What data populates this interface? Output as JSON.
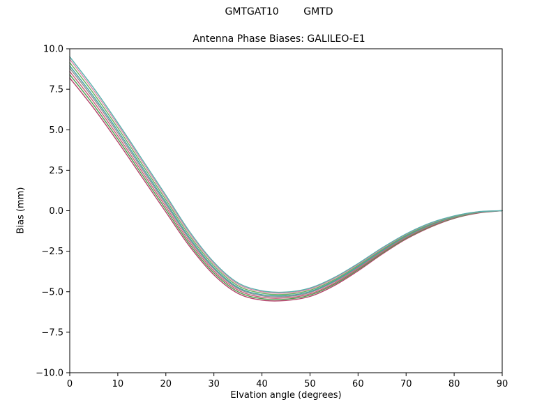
{
  "figure": {
    "suptitle": "GMTGAT10        GMTD",
    "title": "Antenna Phase Biases: GALILEO-E1"
  },
  "chart_data": {
    "type": "line",
    "suptitle": "GMTGAT10        GMTD",
    "title": "Antenna Phase Biases: GALILEO-E1",
    "xlabel": "Elvation angle (degrees)",
    "ylabel": "Bias (mm)",
    "xlim": [
      0,
      90
    ],
    "ylim": [
      -10,
      10
    ],
    "grid": false,
    "legend": "none",
    "frame_color": "#000000",
    "xtick_values": [
      0,
      10,
      20,
      30,
      40,
      50,
      60,
      70,
      80,
      90
    ],
    "xtick_labels": [
      "0",
      "10",
      "20",
      "30",
      "40",
      "50",
      "60",
      "70",
      "80",
      "90"
    ],
    "ytick_values": [
      -10,
      -7.5,
      -5,
      -2.5,
      0,
      2.5,
      5,
      7.5,
      10
    ],
    "ytick_labels": [
      "−10.0",
      "−7.5",
      "−5.0",
      "−2.5",
      "0.0",
      "2.5",
      "5.0",
      "7.5",
      "10.0"
    ],
    "x": [
      0,
      5,
      10,
      15,
      20,
      25,
      30,
      35,
      40,
      45,
      50,
      55,
      60,
      65,
      70,
      75,
      80,
      85,
      90
    ],
    "series": [
      {
        "name": "series-1",
        "color": "#b3436a",
        "values": [
          8.2,
          6.33,
          4.26,
          2.09,
          -0.08,
          -2.22,
          -3.96,
          -5.1,
          -5.52,
          -5.54,
          -5.29,
          -4.63,
          -3.71,
          -2.68,
          -1.75,
          -1.02,
          -0.47,
          -0.14,
          0.0
        ]
      },
      {
        "name": "series-2",
        "color": "#4f9e4f",
        "values": [
          8.4,
          6.52,
          4.44,
          2.26,
          0.08,
          -2.08,
          -3.84,
          -5.0,
          -5.43,
          -5.46,
          -5.21,
          -4.55,
          -3.64,
          -2.62,
          -1.7,
          -0.98,
          -0.45,
          -0.12,
          0.0
        ]
      },
      {
        "name": "series-3",
        "color": "#c75a7a",
        "values": [
          8.6,
          6.71,
          4.62,
          2.43,
          0.24,
          -1.94,
          -3.72,
          -4.9,
          -5.34,
          -5.38,
          -5.13,
          -4.48,
          -3.57,
          -2.56,
          -1.65,
          -0.94,
          -0.42,
          -0.11,
          0.0
        ]
      },
      {
        "name": "series-4",
        "color": "#8f8f8f",
        "values": [
          8.8,
          6.9,
          4.8,
          2.6,
          0.4,
          -1.8,
          -3.6,
          -4.8,
          -5.25,
          -5.3,
          -5.05,
          -4.4,
          -3.5,
          -2.5,
          -1.6,
          -0.9,
          -0.4,
          -0.1,
          0.0
        ]
      },
      {
        "name": "series-5",
        "color": "#3fa0a0",
        "values": [
          8.95,
          7.04,
          4.94,
          2.73,
          0.52,
          -1.7,
          -3.51,
          -4.73,
          -5.18,
          -5.24,
          -4.99,
          -4.34,
          -3.45,
          -2.46,
          -1.56,
          -0.87,
          -0.38,
          -0.09,
          0.0
        ]
      },
      {
        "name": "series-6",
        "color": "#6aae5e",
        "values": [
          9.15,
          7.23,
          5.12,
          2.9,
          0.68,
          -1.56,
          -3.39,
          -4.63,
          -5.09,
          -5.16,
          -4.91,
          -4.27,
          -3.38,
          -2.4,
          -1.51,
          -0.83,
          -0.36,
          -0.08,
          0.0
        ]
      },
      {
        "name": "series-7",
        "color": "#d887a8",
        "values": [
          9.35,
          7.42,
          5.3,
          3.07,
          0.84,
          -1.42,
          -3.27,
          -4.53,
          -5.0,
          -5.08,
          -4.83,
          -4.19,
          -3.31,
          -2.34,
          -1.46,
          -0.79,
          -0.33,
          -0.07,
          0.0
        ]
      },
      {
        "name": "series-8",
        "color": "#58b0ac",
        "values": [
          9.5,
          7.57,
          5.43,
          3.2,
          0.96,
          -1.31,
          -3.18,
          -4.45,
          -4.94,
          -5.02,
          -4.77,
          -4.13,
          -3.26,
          -2.29,
          -1.43,
          -0.76,
          -0.32,
          -0.06,
          0.0
        ]
      }
    ]
  }
}
